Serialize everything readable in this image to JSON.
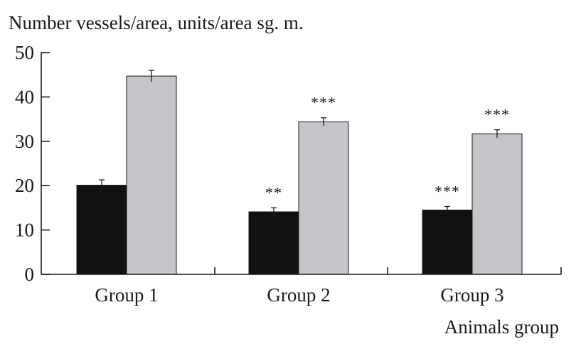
{
  "chart_data": {
    "type": "bar",
    "ylabel": "Number vessels/area, units/area sg. m.",
    "xlabel": "Animals group",
    "categories": [
      "Group 1",
      "Group 2",
      "Group 3"
    ],
    "ylim": [
      0,
      50
    ],
    "yticks": [
      0,
      10,
      20,
      30,
      40,
      50
    ],
    "grid": false,
    "legend": "none",
    "series": [
      {
        "color": "#111111",
        "values": [
          20.1,
          14.1,
          14.5
        ],
        "errors": [
          1.2,
          0.9,
          0.8
        ],
        "annotations": [
          "",
          "**",
          "***"
        ]
      },
      {
        "color": "#c4c5c9",
        "values": [
          44.7,
          34.4,
          31.7
        ],
        "errors": [
          1.3,
          0.9,
          0.9
        ],
        "annotations": [
          "",
          "***",
          "***"
        ]
      }
    ]
  }
}
